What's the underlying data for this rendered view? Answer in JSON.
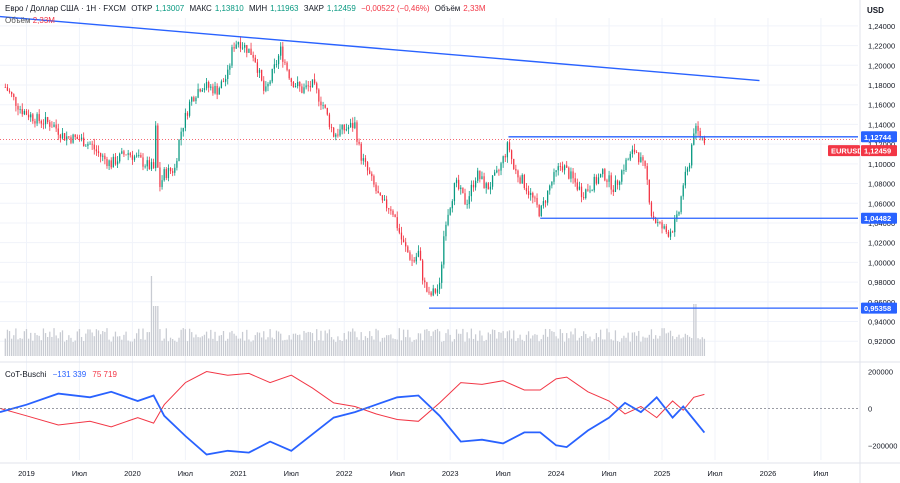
{
  "header": {
    "symbol": "Евро / Доллар США · 1Н · FXCM",
    "open_label": "ОТКР",
    "open": "1,13007",
    "high_label": "МАКС",
    "high": "1,13810",
    "low_label": "МИН",
    "low": "1,11963",
    "close_label": "ЗАКР",
    "close": "1,12459",
    "change": "−0,00522 (−0,46%)",
    "volume_label": "Объём",
    "volume": "2,33M"
  },
  "volume_row": {
    "label": "Объём",
    "value": "2,33M"
  },
  "currency": "USD",
  "oscillator": {
    "name": "CoT-Buschi",
    "blue_value": "−131 339",
    "red_value": "75 719"
  },
  "colors": {
    "up": "#089981",
    "down": "#f23645",
    "line": "#2962ff",
    "volume": "#c8cbd2"
  },
  "chart_data": {
    "type": "candlestick",
    "price_ticks": [
      "1,24000",
      "1,22000",
      "1,20000",
      "1,18000",
      "1,16000",
      "1,14000",
      "1,12000",
      "1,10000",
      "1,08000",
      "1,06000",
      "1,04000",
      "1,02000",
      "1,00000",
      "0,98000",
      "0,96000",
      "0,94000",
      "0,92000"
    ],
    "price_range": [
      0.905,
      1.248
    ],
    "time_labels": [
      "2019",
      "Июл",
      "2020",
      "Июл",
      "2021",
      "Июл",
      "2022",
      "Июл",
      "2023",
      "Июл",
      "2024",
      "Июл",
      "2025",
      "Июл",
      "2026",
      "Июл"
    ],
    "price_tags": [
      {
        "label": "1,12744",
        "value": 1.12744,
        "color": "#2962ff"
      },
      {
        "label": "EURUSD",
        "value": 1.12459,
        "color": "#f23645"
      },
      {
        "label": "1,12459",
        "value": 1.12459,
        "color": "#f23645"
      },
      {
        "label": "1,04482",
        "value": 1.04482,
        "color": "#2962ff"
      },
      {
        "label": "0,95358",
        "value": 0.95358,
        "color": "#2962ff"
      }
    ],
    "levels": [
      {
        "name": "resistance",
        "value": 1.12744,
        "from": 2023.55,
        "to": 2025.8
      },
      {
        "name": "support-1",
        "value": 1.04482,
        "from": 2023.85,
        "to": 2025.8
      },
      {
        "name": "support-2",
        "value": 0.95358,
        "from": 2022.8,
        "to": 2025.8
      }
    ],
    "trendline": [
      [
        2018.75,
        1.2495
      ],
      [
        2025.92,
        1.1845
      ]
    ],
    "close_path": [
      [
        2018.8,
        1.178
      ],
      [
        2018.95,
        1.155
      ],
      [
        2019.1,
        1.145
      ],
      [
        2019.25,
        1.14
      ],
      [
        2019.35,
        1.128
      ],
      [
        2019.5,
        1.125
      ],
      [
        2019.6,
        1.12
      ],
      [
        2019.7,
        1.108
      ],
      [
        2019.8,
        1.1
      ],
      [
        2019.95,
        1.112
      ],
      [
        2020.05,
        1.105
      ],
      [
        2020.15,
        1.098
      ],
      [
        2020.2,
        1.095
      ],
      [
        2020.22,
        1.135
      ],
      [
        2020.25,
        1.075
      ],
      [
        2020.3,
        1.09
      ],
      [
        2020.4,
        1.095
      ],
      [
        2020.45,
        1.13
      ],
      [
        2020.55,
        1.165
      ],
      [
        2020.65,
        1.18
      ],
      [
        2020.8,
        1.175
      ],
      [
        2020.9,
        1.19
      ],
      [
        2020.95,
        1.22
      ],
      [
        2021.0,
        1.225
      ],
      [
        2021.15,
        1.21
      ],
      [
        2021.25,
        1.17
      ],
      [
        2021.35,
        1.2
      ],
      [
        2021.4,
        1.215
      ],
      [
        2021.5,
        1.185
      ],
      [
        2021.6,
        1.175
      ],
      [
        2021.7,
        1.18
      ],
      [
        2021.8,
        1.16
      ],
      [
        2021.9,
        1.13
      ],
      [
        2022.0,
        1.135
      ],
      [
        2022.1,
        1.14
      ],
      [
        2022.15,
        1.11
      ],
      [
        2022.25,
        1.085
      ],
      [
        2022.35,
        1.06
      ],
      [
        2022.45,
        1.055
      ],
      [
        2022.55,
        1.02
      ],
      [
        2022.65,
        1.0
      ],
      [
        2022.7,
        1.01
      ],
      [
        2022.75,
        0.98
      ],
      [
        2022.8,
        0.965
      ],
      [
        2022.9,
        0.975
      ],
      [
        2022.95,
        1.04
      ],
      [
        2023.05,
        1.08
      ],
      [
        2023.15,
        1.06
      ],
      [
        2023.25,
        1.09
      ],
      [
        2023.35,
        1.075
      ],
      [
        2023.45,
        1.09
      ],
      [
        2023.55,
        1.12
      ],
      [
        2023.6,
        1.095
      ],
      [
        2023.7,
        1.08
      ],
      [
        2023.8,
        1.06
      ],
      [
        2023.85,
        1.05
      ],
      [
        2023.95,
        1.08
      ],
      [
        2024.05,
        1.1
      ],
      [
        2024.15,
        1.085
      ],
      [
        2024.25,
        1.07
      ],
      [
        2024.35,
        1.08
      ],
      [
        2024.45,
        1.09
      ],
      [
        2024.55,
        1.075
      ],
      [
        2024.65,
        1.1
      ],
      [
        2024.75,
        1.115
      ],
      [
        2024.85,
        1.09
      ],
      [
        2024.9,
        1.05
      ],
      [
        2024.95,
        1.04
      ],
      [
        2025.05,
        1.03
      ],
      [
        2025.1,
        1.035
      ],
      [
        2025.15,
        1.045
      ],
      [
        2025.2,
        1.08
      ],
      [
        2025.25,
        1.095
      ],
      [
        2025.3,
        1.135
      ],
      [
        2025.35,
        1.13
      ],
      [
        2025.4,
        1.125
      ]
    ],
    "oscillator_ticks": [
      "200000",
      "0",
      "−200000"
    ],
    "oscillator_range": [
      -280000,
      230000
    ],
    "blue_series": [
      [
        2018.75,
        -20000
      ],
      [
        2019.0,
        20000
      ],
      [
        2019.3,
        80000
      ],
      [
        2019.6,
        60000
      ],
      [
        2019.8,
        90000
      ],
      [
        2020.05,
        40000
      ],
      [
        2020.2,
        70000
      ],
      [
        2020.3,
        -40000
      ],
      [
        2020.5,
        -150000
      ],
      [
        2020.7,
        -250000
      ],
      [
        2020.9,
        -230000
      ],
      [
        2021.1,
        -240000
      ],
      [
        2021.3,
        -180000
      ],
      [
        2021.5,
        -230000
      ],
      [
        2021.7,
        -140000
      ],
      [
        2021.9,
        -50000
      ],
      [
        2022.1,
        -20000
      ],
      [
        2022.3,
        20000
      ],
      [
        2022.5,
        60000
      ],
      [
        2022.7,
        70000
      ],
      [
        2022.9,
        -40000
      ],
      [
        2023.1,
        -180000
      ],
      [
        2023.3,
        -170000
      ],
      [
        2023.5,
        -190000
      ],
      [
        2023.7,
        -130000
      ],
      [
        2023.85,
        -130000
      ],
      [
        2024.0,
        -200000
      ],
      [
        2024.1,
        -210000
      ],
      [
        2024.3,
        -120000
      ],
      [
        2024.5,
        -50000
      ],
      [
        2024.65,
        30000
      ],
      [
        2024.8,
        -20000
      ],
      [
        2024.95,
        60000
      ],
      [
        2025.1,
        -50000
      ],
      [
        2025.2,
        10000
      ],
      [
        2025.3,
        -60000
      ],
      [
        2025.4,
        -131339
      ]
    ],
    "red_series": [
      [
        2018.75,
        0
      ],
      [
        2019.0,
        -40000
      ],
      [
        2019.3,
        -90000
      ],
      [
        2019.6,
        -70000
      ],
      [
        2019.8,
        -100000
      ],
      [
        2020.05,
        -50000
      ],
      [
        2020.2,
        -80000
      ],
      [
        2020.3,
        20000
      ],
      [
        2020.5,
        140000
      ],
      [
        2020.7,
        200000
      ],
      [
        2020.9,
        180000
      ],
      [
        2021.1,
        190000
      ],
      [
        2021.3,
        140000
      ],
      [
        2021.5,
        180000
      ],
      [
        2021.7,
        110000
      ],
      [
        2021.9,
        30000
      ],
      [
        2022.1,
        10000
      ],
      [
        2022.3,
        -30000
      ],
      [
        2022.5,
        -60000
      ],
      [
        2022.7,
        -70000
      ],
      [
        2022.9,
        30000
      ],
      [
        2023.1,
        140000
      ],
      [
        2023.3,
        130000
      ],
      [
        2023.5,
        150000
      ],
      [
        2023.7,
        100000
      ],
      [
        2023.85,
        100000
      ],
      [
        2024.0,
        160000
      ],
      [
        2024.1,
        170000
      ],
      [
        2024.3,
        90000
      ],
      [
        2024.5,
        40000
      ],
      [
        2024.65,
        -30000
      ],
      [
        2024.8,
        10000
      ],
      [
        2024.95,
        -50000
      ],
      [
        2025.1,
        40000
      ],
      [
        2025.2,
        -10000
      ],
      [
        2025.3,
        60000
      ],
      [
        2025.4,
        75719
      ]
    ]
  }
}
